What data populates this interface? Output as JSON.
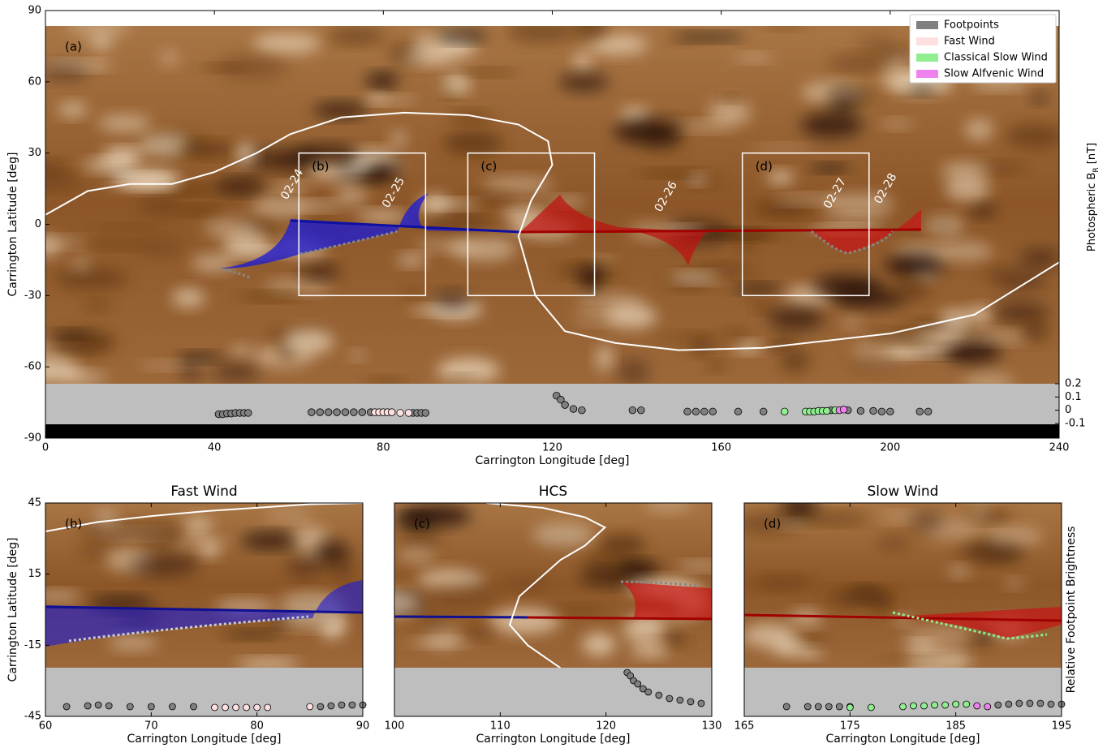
{
  "chart_data": [
    {
      "type": "map-scatter",
      "panel_label": "(a)",
      "xlabel": "Carrington Longitude [deg]",
      "ylabel": "Carrington Latitude [deg]",
      "xlim": [
        0,
        240
      ],
      "xticks": [
        0,
        40,
        80,
        120,
        160,
        200,
        240
      ],
      "ylim": [
        -90,
        90
      ],
      "yticks": [
        90,
        60,
        30,
        0,
        -30,
        -60,
        -90
      ],
      "y2lim": [
        -0.1,
        0.2
      ],
      "y2ticks": [
        0.2,
        0.1,
        0,
        -0.1
      ],
      "colorbar_label": [
        "Photospheric B",
        "R",
        " [nT]"
      ],
      "legend": "upper right",
      "boxes": [
        {
          "label": "(b)",
          "xlim": [
            60,
            90
          ],
          "ylim": [
            -30,
            30
          ]
        },
        {
          "label": "(c)",
          "xlim": [
            100,
            130
          ],
          "ylim": [
            -30,
            30
          ]
        },
        {
          "label": "(d)",
          "xlim": [
            165,
            195
          ],
          "ylim": [
            -30,
            30
          ]
        }
      ],
      "dates": [
        {
          "label": "02-24",
          "x": 56.5,
          "y": 10.8
        },
        {
          "label": "02-25",
          "x": 80.5,
          "y": 7.3
        },
        {
          "label": "02-26",
          "x": 145,
          "y": 5.6
        },
        {
          "label": "02-27",
          "x": 185,
          "y": 7
        },
        {
          "label": "02-28",
          "x": 197,
          "y": 9
        }
      ],
      "hcs": {
        "x": [
          0,
          10,
          20,
          30,
          40,
          50,
          58,
          70,
          85,
          100,
          112,
          119,
          120,
          115,
          112,
          116,
          123,
          135,
          150,
          170,
          200,
          220,
          240
        ],
        "y": [
          4,
          14,
          17,
          17,
          22,
          30,
          38,
          45,
          47,
          46,
          42,
          35,
          25,
          10,
          -5,
          -30,
          -45,
          -50,
          -53,
          -52,
          -46,
          -38,
          -16
        ]
      },
      "series": [
        {
          "name": "Footpoints",
          "color": "#808080",
          "axis": "y2",
          "x": [
            41,
            42,
            43,
            44,
            45,
            46,
            47,
            48,
            63,
            65,
            67,
            69,
            71,
            73,
            75,
            77,
            87,
            88,
            89,
            90,
            121,
            122,
            123,
            125,
            127,
            139,
            141,
            152,
            154,
            156,
            158,
            164,
            170,
            186,
            190,
            193,
            196,
            198,
            200,
            207,
            209
          ],
          "values": [
            -0.03,
            -0.03,
            -0.025,
            -0.025,
            -0.02,
            -0.02,
            -0.02,
            -0.02,
            -0.015,
            -0.015,
            -0.015,
            -0.015,
            -0.015,
            -0.015,
            -0.015,
            -0.015,
            -0.02,
            -0.02,
            -0.02,
            -0.02,
            0.11,
            0.08,
            0.04,
            0.01,
            0,
            0,
            0,
            -0.01,
            -0.01,
            -0.01,
            -0.01,
            -0.01,
            -0.01,
            0,
            0,
            -0.005,
            -0.005,
            -0.01,
            -0.01,
            -0.01,
            -0.01
          ]
        },
        {
          "name": "Fast Wind",
          "color": "#ffe0e0",
          "axis": "y2",
          "x": [
            78,
            79,
            80,
            81,
            82,
            84,
            86
          ],
          "values": [
            -0.015,
            -0.015,
            -0.015,
            -0.015,
            -0.015,
            -0.02,
            -0.02
          ]
        },
        {
          "name": "Classical Slow Wind",
          "color": "#90ee90",
          "axis": "y2",
          "x": [
            175,
            180,
            181,
            182,
            183,
            184,
            185,
            187
          ],
          "values": [
            -0.01,
            -0.01,
            -0.01,
            -0.01,
            -0.005,
            -0.005,
            -0.005,
            0
          ]
        },
        {
          "name": "Slow Alfvenic Wind",
          "color": "#ee82ee",
          "axis": "y2",
          "x": [
            188,
            189
          ],
          "values": [
            0,
            0.005
          ]
        }
      ]
    },
    {
      "type": "map-scatter",
      "title": "Fast Wind",
      "panel_label": "(b)",
      "xlabel": "Carrington Longitude [deg]",
      "ylabel": "Carrington Latitude [deg]",
      "xlim": [
        60,
        90
      ],
      "xticks": [
        60,
        70,
        80,
        90
      ],
      "ylim": [
        -45,
        45
      ],
      "yticks": [
        45,
        15,
        -15,
        -45
      ],
      "y2lim": [
        -0.1,
        0.2
      ],
      "hcs": {
        "x": [
          60,
          65,
          70,
          75,
          80,
          85,
          90
        ],
        "y": [
          33,
          37,
          39.5,
          41.5,
          43,
          44.5,
          45
        ]
      },
      "series": [
        {
          "color": "#808080",
          "axis": "y2",
          "x": [
            62,
            64,
            65,
            66,
            68,
            70,
            72,
            74,
            86,
            87,
            88,
            89,
            90
          ],
          "values": [
            -0.04,
            -0.035,
            -0.03,
            -0.035,
            -0.04,
            -0.04,
            -0.04,
            -0.04,
            -0.04,
            -0.035,
            -0.03,
            -0.03,
            -0.03
          ]
        },
        {
          "color": "#ffe0e0",
          "axis": "y2",
          "x": [
            76,
            77,
            78,
            79,
            80,
            81,
            85
          ],
          "values": [
            -0.045,
            -0.045,
            -0.045,
            -0.045,
            -0.045,
            -0.045,
            -0.04
          ]
        }
      ]
    },
    {
      "type": "map-scatter",
      "title": "HCS",
      "panel_label": "(c)",
      "xlabel": "Carrington Longitude [deg]",
      "xlim": [
        100,
        130
      ],
      "xticks": [
        100,
        110,
        120,
        130
      ],
      "ylim": [
        -45,
        45
      ],
      "y2lim": [
        -0.1,
        0.2
      ],
      "hcs": {
        "x": [
          108.7,
          114,
          118,
          119.9,
          118,
          115.7,
          111.8,
          110.9,
          112.6,
          115.7
        ],
        "y": [
          45,
          43,
          39,
          34.7,
          27,
          21,
          5.6,
          -6.4,
          -15,
          -24.6
        ]
      },
      "series": [
        {
          "color": "#808080",
          "axis": "y2",
          "x": [
            122,
            122.3,
            122.6,
            123,
            123.5,
            124,
            125,
            126,
            127,
            128,
            129
          ],
          "values": [
            0.17,
            0.15,
            0.12,
            0.1,
            0.07,
            0.05,
            0.03,
            0.01,
            0,
            -0.01,
            -0.02
          ]
        }
      ]
    },
    {
      "type": "map-scatter",
      "title": "Slow Wind",
      "panel_label": "(d)",
      "xlabel": "Carrington Longitude [deg]",
      "y2label": "Relative Footpoint Brightness",
      "xlim": [
        165,
        195
      ],
      "xticks": [
        165,
        175,
        185,
        195
      ],
      "ylim": [
        -45,
        45
      ],
      "y2lim": [
        -0.1,
        0.2
      ],
      "series": [
        {
          "color": "#808080",
          "axis": "y2",
          "x": [
            169,
            171,
            172,
            173,
            174,
            175,
            189,
            190,
            191,
            192,
            193,
            194,
            195
          ],
          "values": [
            -0.04,
            -0.04,
            -0.04,
            -0.04,
            -0.04,
            -0.04,
            -0.03,
            -0.025,
            -0.02,
            -0.02,
            -0.02,
            -0.025,
            -0.025
          ]
        },
        {
          "color": "#90ee90",
          "axis": "y2",
          "x": [
            175,
            177,
            180,
            181,
            182,
            183,
            184,
            185,
            186
          ],
          "values": [
            -0.045,
            -0.045,
            -0.04,
            -0.035,
            -0.035,
            -0.03,
            -0.03,
            -0.025,
            -0.025
          ]
        },
        {
          "color": "#ee82ee",
          "axis": "y2",
          "x": [
            187,
            188
          ],
          "values": [
            -0.035,
            -0.04
          ]
        }
      ]
    }
  ]
}
